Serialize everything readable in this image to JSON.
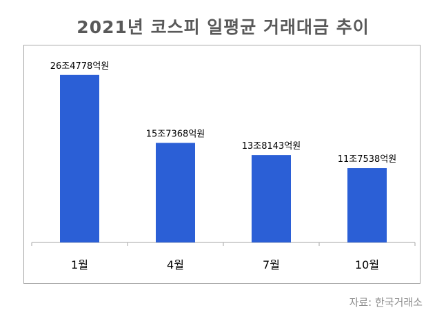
{
  "chart_data": {
    "type": "bar",
    "title": "2021년 코스피 일평균 거래대금 추이",
    "categories": [
      "1월",
      "4월",
      "7월",
      "10월"
    ],
    "values": [
      264778,
      157368,
      138143,
      117538
    ],
    "data_labels": [
      "26조4778억원",
      "15조7368억원",
      "13조8143억원",
      "11조7538억원"
    ],
    "unit": "억원",
    "ylim": [
      0,
      270000
    ],
    "grid": false,
    "legend": "none",
    "bar_color": "#2b5fd6",
    "source": "자료:  한국거래소"
  }
}
